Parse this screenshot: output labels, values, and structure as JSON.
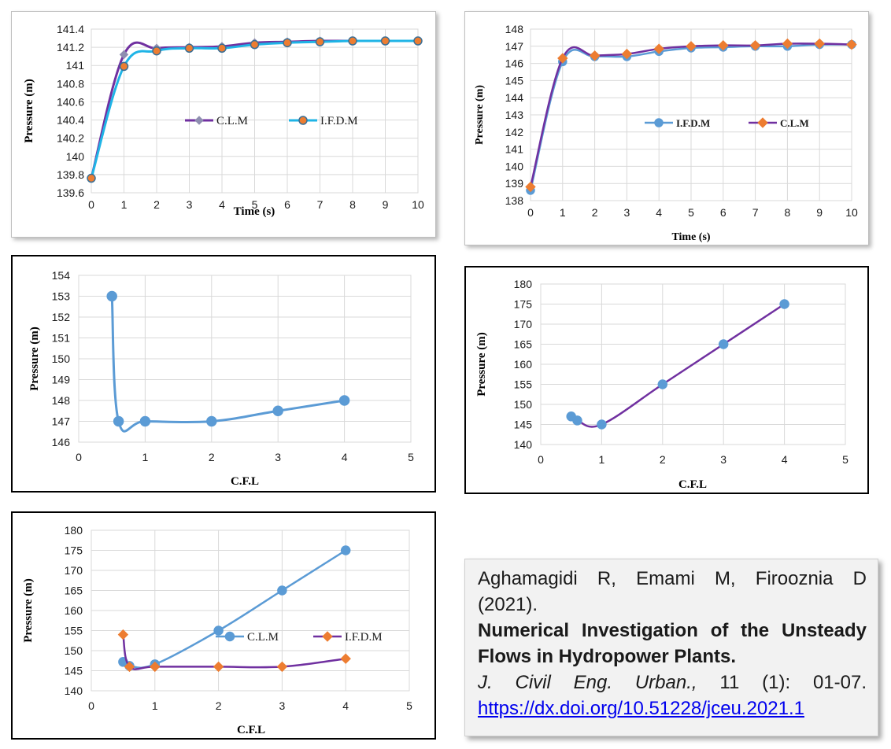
{
  "colors": {
    "blue": "#5b9bd5",
    "cyan": "#1fb4e6",
    "purple": "#7030a0",
    "orange": "#ed7d31",
    "gray_marker": "#8e8eb0"
  },
  "chart_data": [
    {
      "type": "line",
      "ylabel": "Pressure (m)",
      "xlabel": "Time (s)",
      "xlim": [
        0,
        10
      ],
      "ylim": [
        139.6,
        141.4
      ],
      "xticks": [
        "0",
        "1",
        "2",
        "3",
        "4",
        "5",
        "6",
        "7",
        "8",
        "9",
        "10"
      ],
      "yticks": [
        "139.6",
        "139.8",
        "140",
        "140.2",
        "140.4",
        "140.6",
        "140.8",
        "141",
        "141.2",
        "141.4"
      ],
      "grid": true,
      "legend_position": "center",
      "series": [
        {
          "name": "C.L.M",
          "x": [
            0,
            1,
            2,
            3,
            4,
            5,
            6,
            7,
            8,
            9,
            10
          ],
          "values": [
            139.76,
            141.12,
            141.19,
            141.2,
            141.21,
            141.25,
            141.26,
            141.27,
            141.27,
            141.27,
            141.27
          ]
        },
        {
          "name": "I.F.D.M",
          "x": [
            0,
            1,
            2,
            3,
            4,
            5,
            6,
            7,
            8,
            9,
            10
          ],
          "values": [
            139.76,
            140.99,
            141.16,
            141.19,
            141.19,
            141.23,
            141.25,
            141.26,
            141.27,
            141.27,
            141.27
          ]
        }
      ]
    },
    {
      "type": "line",
      "ylabel": "Pressure (m)",
      "xlabel": "Time (s)",
      "xlim": [
        0,
        10
      ],
      "ylim": [
        138,
        148
      ],
      "xticks": [
        "0",
        "1",
        "2",
        "3",
        "4",
        "5",
        "6",
        "7",
        "8",
        "9",
        "10"
      ],
      "yticks": [
        "138",
        "139",
        "140",
        "141",
        "142",
        "143",
        "144",
        "145",
        "146",
        "147",
        "148"
      ],
      "grid": true,
      "legend_position": "center-right",
      "series": [
        {
          "name": "I.F.D.M",
          "x": [
            0,
            1,
            2,
            3,
            4,
            5,
            6,
            7,
            8,
            9,
            10
          ],
          "values": [
            138.6,
            146.1,
            146.4,
            146.4,
            146.7,
            146.9,
            146.95,
            147.0,
            147.0,
            147.1,
            147.1
          ]
        },
        {
          "name": "C.L.M",
          "x": [
            0,
            1,
            2,
            3,
            4,
            5,
            6,
            7,
            8,
            9,
            10
          ],
          "values": [
            138.8,
            146.3,
            146.45,
            146.55,
            146.85,
            147.0,
            147.05,
            147.05,
            147.15,
            147.15,
            147.1
          ]
        }
      ]
    },
    {
      "type": "scatter",
      "ylabel": "Pressure (m)",
      "xlabel": "C.F.L",
      "xlim": [
        0,
        5
      ],
      "ylim": [
        146,
        154
      ],
      "xticks": [
        "0",
        "1",
        "2",
        "3",
        "4",
        "5"
      ],
      "yticks": [
        "146",
        "147",
        "148",
        "149",
        "150",
        "151",
        "152",
        "153",
        "154"
      ],
      "grid": true,
      "series": [
        {
          "x": [
            0.5,
            0.6,
            1,
            2,
            3,
            4
          ],
          "values": [
            153,
            147,
            147,
            147,
            147.5,
            148
          ]
        }
      ]
    },
    {
      "type": "scatter",
      "ylabel": "Pressure (m)",
      "xlabel": "C.F.L",
      "xlim": [
        0,
        5
      ],
      "ylim": [
        140,
        180
      ],
      "xticks": [
        "0",
        "1",
        "2",
        "3",
        "4",
        "5"
      ],
      "yticks": [
        "140",
        "145",
        "150",
        "155",
        "160",
        "165",
        "170",
        "175",
        "180"
      ],
      "grid": true,
      "series": [
        {
          "x": [
            0.5,
            0.6,
            1,
            2,
            3,
            4
          ],
          "values": [
            147,
            146,
            145,
            155,
            165,
            175
          ]
        }
      ]
    },
    {
      "type": "scatter",
      "ylabel": "Pressure (m)",
      "xlabel": "C.F.L",
      "xlim": [
        0,
        5
      ],
      "ylim": [
        140,
        180
      ],
      "xticks": [
        "0",
        "1",
        "2",
        "3",
        "4",
        "5"
      ],
      "yticks": [
        "140",
        "145",
        "150",
        "155",
        "160",
        "165",
        "170",
        "175",
        "180"
      ],
      "grid": true,
      "legend_position": "center",
      "series": [
        {
          "name": "C.L.M",
          "x": [
            0.5,
            0.6,
            1,
            2,
            3,
            4
          ],
          "values": [
            147.2,
            146.2,
            146.6,
            155,
            165,
            175
          ]
        },
        {
          "name": "I.F.D.M",
          "x": [
            0.5,
            0.6,
            1,
            2,
            3,
            4
          ],
          "values": [
            154,
            146,
            146,
            146,
            146,
            148
          ]
        }
      ]
    }
  ],
  "citation": {
    "authors": "Aghamagidi R, Emami M, Firooznia D",
    "year": "(2021).",
    "title_line1": "Numerical Investigation of the Unsteady",
    "title_line2": "Flows in Hydropower Plants.",
    "journal": "J. Civil Eng. Urban.,",
    "volume": "11 (1): 01-07.",
    "doi": "https://dx.doi.org/10.51228/jceu.2021.1"
  }
}
